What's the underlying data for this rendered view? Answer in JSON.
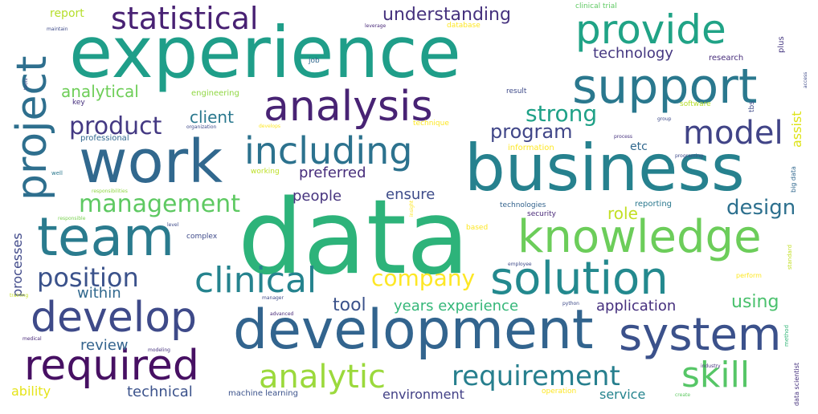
{
  "words": [
    {
      "text": "data",
      "color": "#2db37a"
    },
    {
      "text": "experience",
      "color": "#1f9e89"
    },
    {
      "text": "business",
      "color": "#26818e"
    },
    {
      "text": "development",
      "color": "#32648e"
    },
    {
      "text": "work",
      "color": "#31688e"
    },
    {
      "text": "support",
      "color": "#2a788e"
    },
    {
      "text": "team",
      "color": "#2a7b8e"
    },
    {
      "text": "knowledge",
      "color": "#6ccd5a"
    },
    {
      "text": "system",
      "color": "#3b518b"
    },
    {
      "text": "solution",
      "color": "#23898e"
    },
    {
      "text": "analysis",
      "color": "#482374"
    },
    {
      "text": "develop",
      "color": "#3e4a89"
    },
    {
      "text": "provide",
      "color": "#20a386"
    },
    {
      "text": "project",
      "color": "#2e6f8e"
    },
    {
      "text": "required",
      "color": "#471063"
    },
    {
      "text": "including",
      "color": "#2c728e"
    },
    {
      "text": "clinical",
      "color": "#25838e"
    },
    {
      "text": "analytic",
      "color": "#9bd93c"
    },
    {
      "text": "requirement",
      "color": "#277f8e"
    },
    {
      "text": "skill",
      "color": "#56c667"
    },
    {
      "text": "model",
      "color": "#414487"
    },
    {
      "text": "statistical",
      "color": "#482173"
    },
    {
      "text": "position",
      "color": "#3b528b"
    },
    {
      "text": "management",
      "color": "#5ec962"
    },
    {
      "text": "product",
      "color": "#443983"
    },
    {
      "text": "company",
      "color": "#fde725"
    },
    {
      "text": "strong",
      "color": "#1fa187"
    },
    {
      "text": "understanding",
      "color": "#46327e"
    },
    {
      "text": "program",
      "color": "#404688"
    },
    {
      "text": "design",
      "color": "#2d708e"
    },
    {
      "text": "analytical",
      "color": "#6ece58"
    },
    {
      "text": "tool",
      "color": "#3b528b"
    },
    {
      "text": "technology",
      "color": "#453781"
    },
    {
      "text": "years experience",
      "color": "#35b779"
    },
    {
      "text": "preferred",
      "color": "#472d7b"
    },
    {
      "text": "people",
      "color": "#46337e"
    },
    {
      "text": "ensure",
      "color": "#3e4c8a"
    },
    {
      "text": "role",
      "color": "#c2df23"
    },
    {
      "text": "client",
      "color": "#2a788e"
    },
    {
      "text": "application",
      "color": "#46307e"
    },
    {
      "text": "using",
      "color": "#4ac16d"
    },
    {
      "text": "within",
      "color": "#31688e"
    },
    {
      "text": "processes",
      "color": "#3f4889"
    },
    {
      "text": "review",
      "color": "#33638d"
    },
    {
      "text": "technical",
      "color": "#3b528b"
    },
    {
      "text": "service",
      "color": "#25848e"
    },
    {
      "text": "environment",
      "color": "#424086"
    },
    {
      "text": "ability",
      "color": "#e5e419"
    },
    {
      "text": "assist",
      "color": "#dde318"
    },
    {
      "text": "etc",
      "color": "#31688e"
    },
    {
      "text": "report",
      "color": "#b5de2b"
    },
    {
      "text": "clinical trial",
      "color": "#5ec962"
    },
    {
      "text": "database",
      "color": "#fde725"
    },
    {
      "text": "research",
      "color": "#472d7b"
    },
    {
      "text": "plus",
      "color": "#453781"
    },
    {
      "text": "job",
      "color": "#31688e"
    },
    {
      "text": "key",
      "color": "#46307e"
    },
    {
      "text": "engineering",
      "color": "#90d743"
    },
    {
      "text": "result",
      "color": "#3e4a89"
    },
    {
      "text": "professional",
      "color": "#31688e"
    },
    {
      "text": "technique",
      "color": "#fde725"
    },
    {
      "text": "information",
      "color": "#fde725"
    },
    {
      "text": "software",
      "color": "#b5de2b"
    },
    {
      "text": "responsibilities",
      "color": "#8fd744"
    },
    {
      "text": "responsible",
      "color": "#7ad151"
    },
    {
      "text": "technologies",
      "color": "#33638d"
    },
    {
      "text": "security",
      "color": "#482878"
    },
    {
      "text": "reporting",
      "color": "#2a788e"
    },
    {
      "text": "complex",
      "color": "#3e4a89"
    },
    {
      "text": "machine learning",
      "color": "#3b528b"
    },
    {
      "text": "operation",
      "color": "#fde725"
    },
    {
      "text": "data scientist",
      "color": "#46327e"
    },
    {
      "text": "big data",
      "color": "#31688e"
    },
    {
      "text": "perform",
      "color": "#fde725"
    },
    {
      "text": "working",
      "color": "#bddf26"
    },
    {
      "text": "well",
      "color": "#2a788e"
    },
    {
      "text": "training",
      "color": "#c2df23"
    },
    {
      "text": "medical",
      "color": "#482878"
    },
    {
      "text": "modeling",
      "color": "#46327e"
    },
    {
      "text": "manager",
      "color": "#3e4a89"
    },
    {
      "text": "advanced",
      "color": "#482878"
    },
    {
      "text": "python",
      "color": "#3e4a89"
    },
    {
      "text": "employee",
      "color": "#3e4a89"
    },
    {
      "text": "industry",
      "color": "#46337e"
    },
    {
      "text": "create",
      "color": "#5ec962"
    },
    {
      "text": "method",
      "color": "#35b779"
    },
    {
      "text": "standard",
      "color": "#c2df23"
    },
    {
      "text": "based",
      "color": "#fde725"
    },
    {
      "text": "organization",
      "color": "#3e4a89"
    },
    {
      "text": "process",
      "color": "#46327e"
    },
    {
      "text": "group",
      "color": "#3e4a89"
    },
    {
      "text": "programing",
      "color": "#3e4a89"
    },
    {
      "text": "maintain",
      "color": "#3e4a89"
    },
    {
      "text": "develops",
      "color": "#fde725"
    },
    {
      "text": "level",
      "color": "#3e4a89"
    },
    {
      "text": "leverage",
      "color": "#482878"
    },
    {
      "text": "insight",
      "color": "#fde725"
    },
    {
      "text": "access",
      "color": "#3e4a89"
    },
    {
      "text": "tbs",
      "color": "#3e4a89"
    },
    {
      "text": "tools",
      "color": "#3e4a89"
    }
  ]
}
